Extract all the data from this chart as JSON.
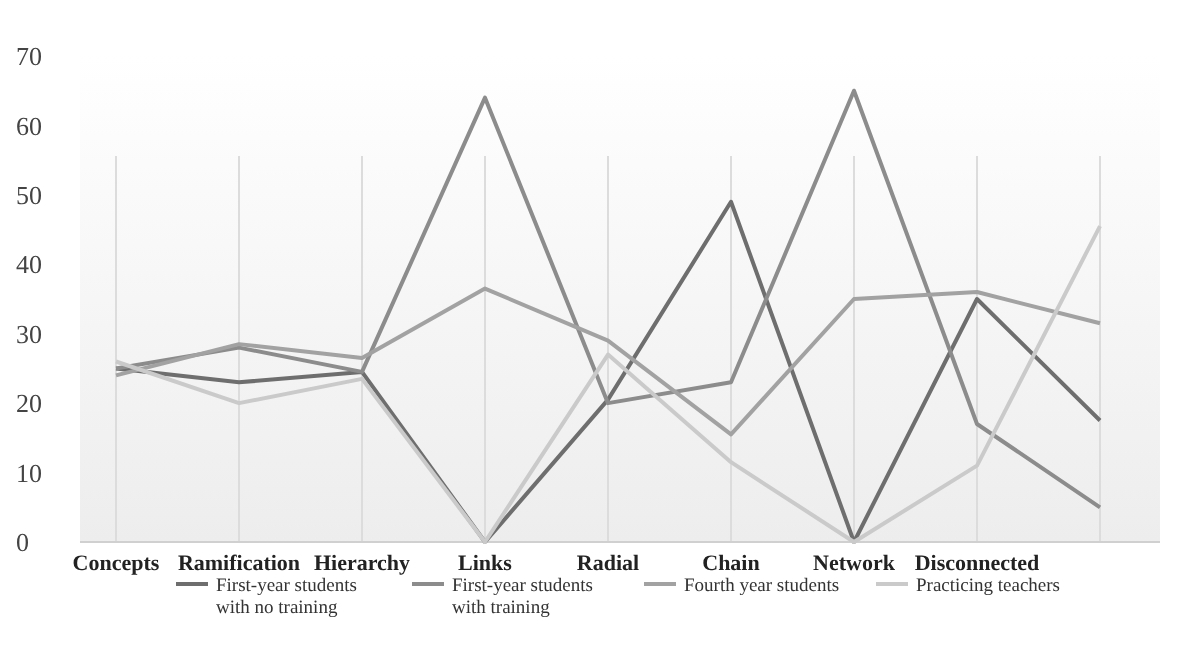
{
  "chart_data": {
    "type": "line",
    "categories": [
      "Concepts",
      "Ramification",
      "Hierarchy",
      "Links",
      "Radial",
      "Chain",
      "Network",
      "Disconnected",
      null
    ],
    "series": [
      {
        "name": "First-year students with no training",
        "color": "#6e6e6e",
        "values": [
          25,
          23,
          24.5,
          0,
          20.5,
          49,
          0,
          35,
          17.5
        ]
      },
      {
        "name": "First-year students with training",
        "color": "#8c8c8c",
        "values": [
          25,
          28,
          24.5,
          64,
          20,
          23,
          65,
          17,
          5
        ]
      },
      {
        "name": "Fourth year students",
        "color": "#a2a2a2",
        "values": [
          24,
          28.5,
          26.5,
          36.5,
          29,
          15.5,
          35,
          36,
          31.5
        ]
      },
      {
        "name": "Practicing teachers",
        "color": "#cacaca",
        "values": [
          26,
          20,
          23.5,
          0,
          27,
          11.5,
          0,
          11,
          45.5
        ]
      }
    ],
    "ylim": [
      0,
      70
    ],
    "yticks": [
      0,
      10,
      20,
      30,
      40,
      50,
      60,
      70
    ],
    "grid": "x",
    "legend": "bottom",
    "marker": "none",
    "line_style": "solid"
  }
}
